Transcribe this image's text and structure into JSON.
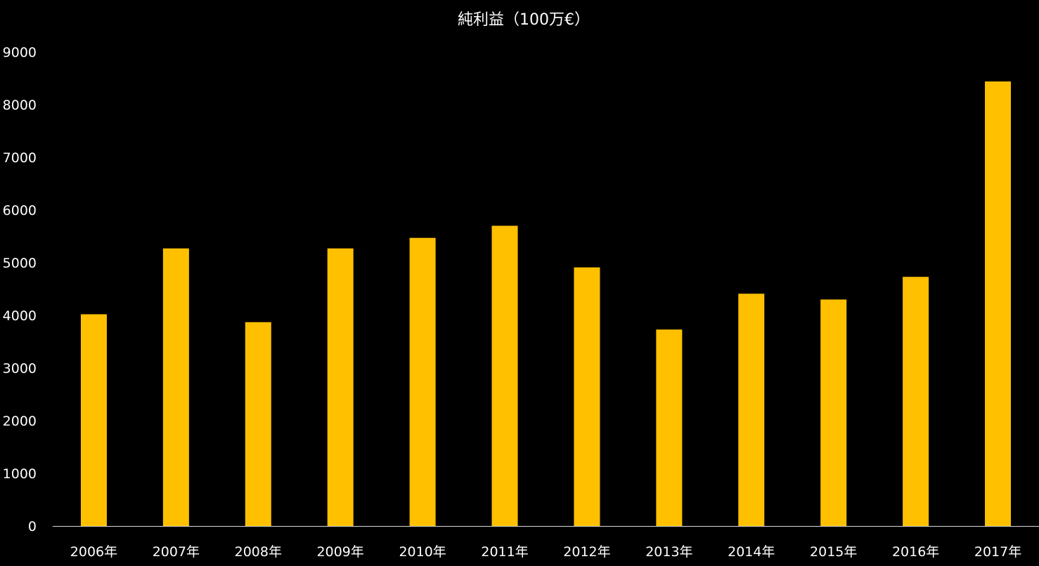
{
  "chart_data": {
    "type": "bar",
    "title": "純利益（100万€）",
    "xlabel": "",
    "ylabel": "",
    "categories": [
      "2006年",
      "2007年",
      "2008年",
      "2009年",
      "2010年",
      "2011年",
      "2012年",
      "2013年",
      "2014年",
      "2015年",
      "2016年",
      "2017年"
    ],
    "values": [
      4020,
      5270,
      3870,
      5270,
      5470,
      5700,
      4910,
      3730,
      4410,
      4300,
      4730,
      8440
    ],
    "ylim": [
      0,
      9000
    ],
    "yticks": [
      "0",
      "1000",
      "2000",
      "3000",
      "4000",
      "5000",
      "6000",
      "7000",
      "8000",
      "9000"
    ],
    "grid": false,
    "legend": "none",
    "bar_color": "#FFC000",
    "background_color": "#000000",
    "text_color": "#FFFFFF"
  }
}
